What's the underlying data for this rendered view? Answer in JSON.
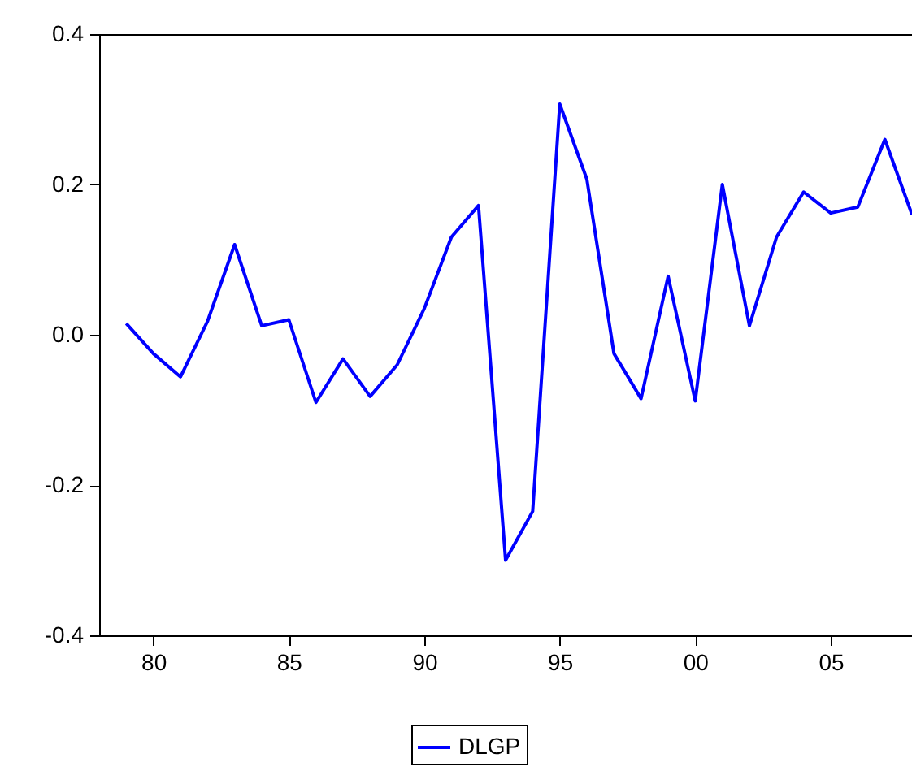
{
  "chart_data": {
    "type": "line",
    "x": [
      1979,
      1980,
      1981,
      1982,
      1983,
      1984,
      1985,
      1986,
      1987,
      1988,
      1989,
      1990,
      1991,
      1992,
      1993,
      1994,
      1995,
      1996,
      1997,
      1998,
      1999,
      2000,
      2001,
      2002,
      2003,
      2004,
      2005,
      2006,
      2007,
      2008
    ],
    "series": [
      {
        "name": "DLGP",
        "color": "#0000ff",
        "values": [
          0.015,
          -0.025,
          -0.056,
          0.018,
          0.12,
          0.012,
          0.02,
          -0.09,
          -0.032,
          -0.082,
          -0.04,
          0.035,
          0.13,
          0.172,
          -0.3,
          -0.235,
          0.307,
          0.207,
          -0.025,
          -0.085,
          0.078,
          -0.088,
          0.2,
          0.012,
          0.13,
          0.19,
          0.162,
          0.17,
          0.26,
          0.16
        ]
      }
    ],
    "xlim": [
      1978,
      2008
    ],
    "xticks": [
      {
        "value": 1980,
        "label": "80"
      },
      {
        "value": 1985,
        "label": "85"
      },
      {
        "value": 1990,
        "label": "90"
      },
      {
        "value": 1995,
        "label": "95"
      },
      {
        "value": 2000,
        "label": "00"
      },
      {
        "value": 2005,
        "label": "05"
      }
    ],
    "ylim": [
      -0.4,
      0.4
    ],
    "yticks": [
      {
        "value": -0.4,
        "label": "-0.4"
      },
      {
        "value": -0.2,
        "label": "-0.2"
      },
      {
        "value": 0,
        "label": "0.0"
      },
      {
        "value": 0.2,
        "label": "0.2"
      },
      {
        "value": 0.4,
        "label": "0.4"
      }
    ],
    "legend": "bottom",
    "grid": false,
    "marker": "none",
    "line_style": "solid"
  }
}
